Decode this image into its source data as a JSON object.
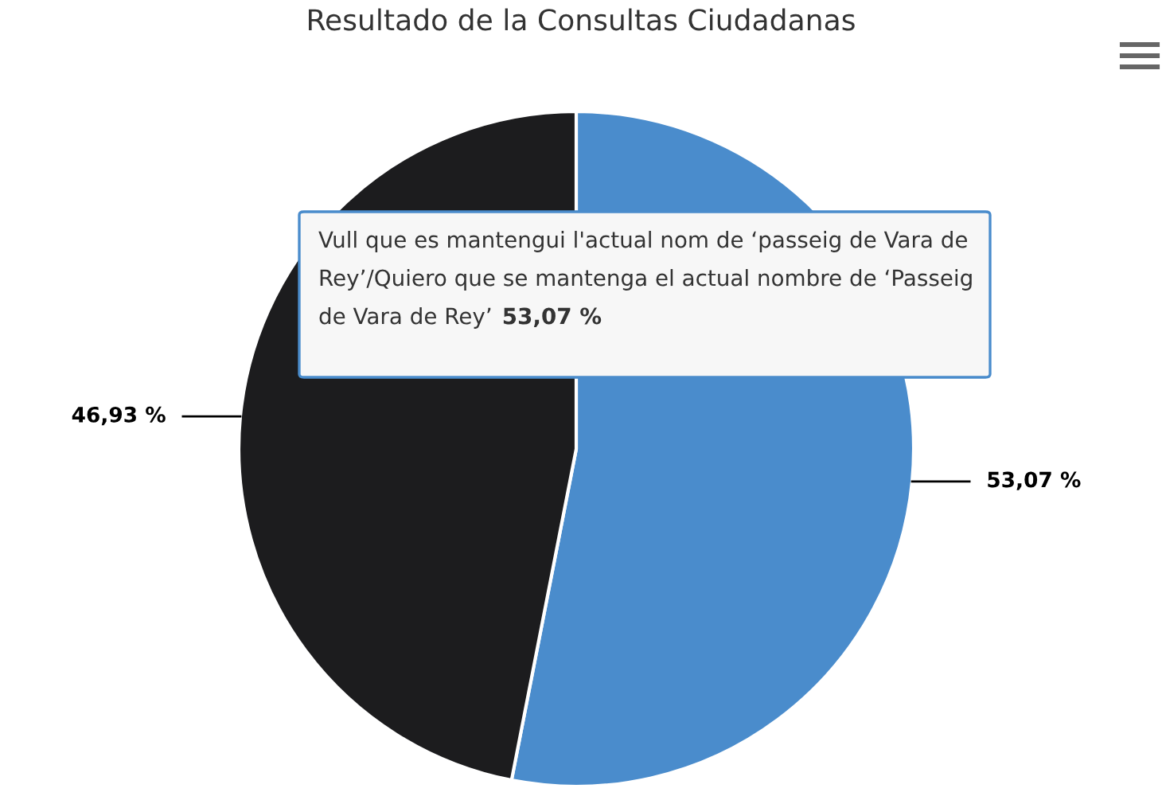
{
  "chart_data": {
    "type": "pie",
    "title": "Resultado de la Consultas Ciudadanas",
    "categories": [
      "Vull que es mantengui l'actual nom de ‘passeig de Vara de Rey’/Quiero que se mantenga el actual nombre de ‘Passeig de Vara de Rey’",
      null
    ],
    "values": [
      53.07,
      46.93
    ],
    "value_labels": [
      "53,07 %",
      "46,93 %"
    ],
    "colors": [
      "#4a8ccc",
      "#1c1c1e"
    ],
    "legend": false
  }
}
